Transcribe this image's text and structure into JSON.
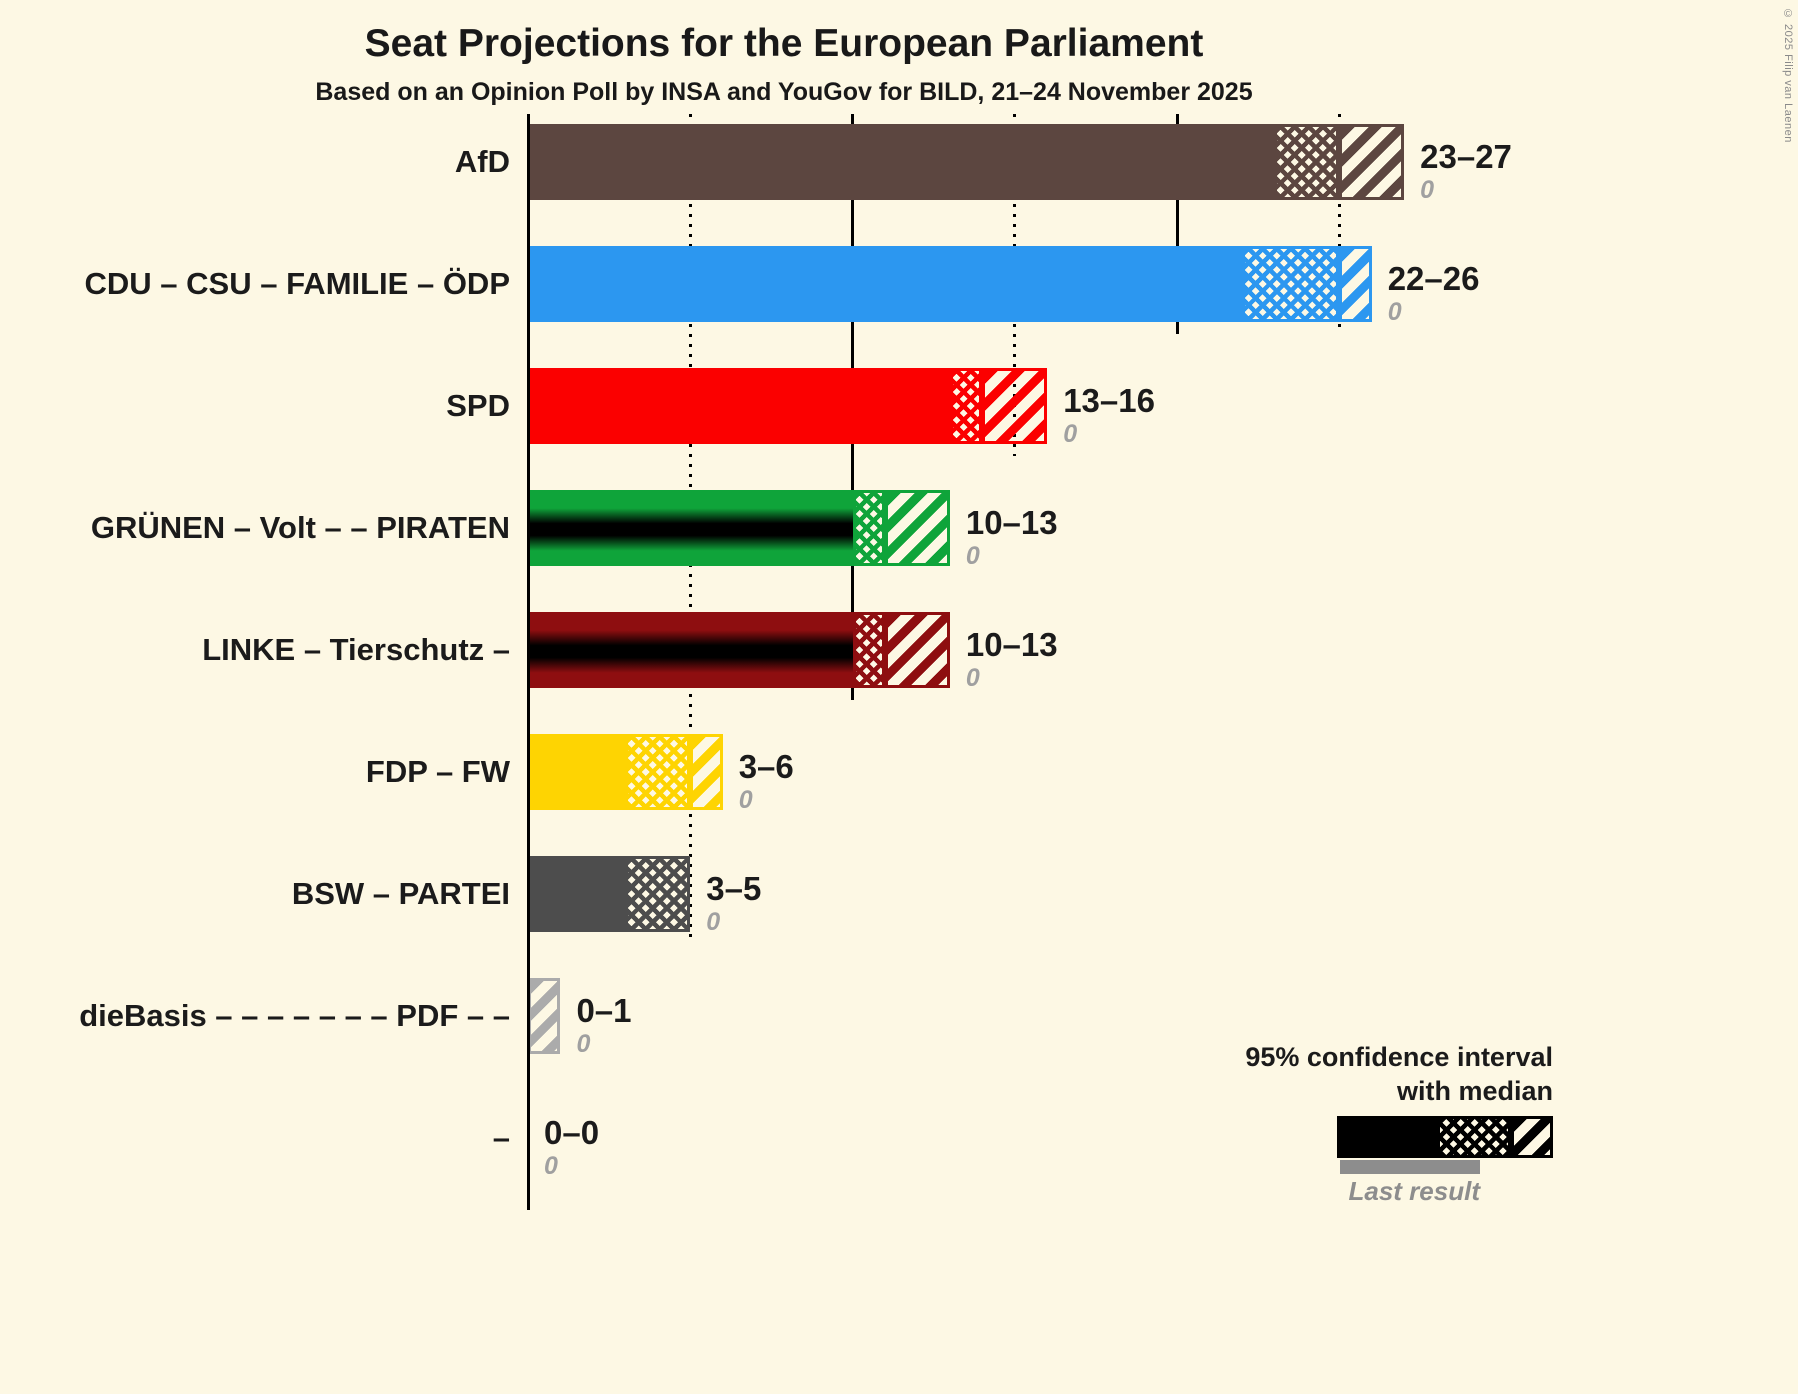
{
  "title": "Seat Projections for the European Parliament",
  "subtitle": "Based on an Opinion Poll by INSA and YouGov for BILD, 21–24 November 2025",
  "copyright": "© 2025 Filip van Laenen",
  "legend": {
    "line1": "95% confidence interval",
    "line2": "with median",
    "last_result": "Last result"
  },
  "colors": {
    "background": "#fdf8e4",
    "text": "#1b1b1b",
    "muted_gray": "#a0a0a0",
    "last_result_gray": "#8d8d8d",
    "legend_bar_black": "#000000"
  },
  "chart_data": {
    "type": "bar",
    "orientation": "horizontal",
    "title": "Seat Projections for the European Parliament",
    "subtitle": "Based on an Opinion Poll by INSA and YouGov for BILD, 21–24 November 2025",
    "x_axis": {
      "unit": "seats",
      "min": 0,
      "max": 27,
      "dotted_gridlines": [
        5,
        15,
        25
      ],
      "solid_gridlines": [
        10,
        20
      ]
    },
    "bar_semantics": "solid fill = up to 95% CI lower bound; crosshatch = lower bound to median; diagonal hatch = median to upper bound; gray italic number = last result",
    "parties": [
      {
        "label": "AfD",
        "low": 23,
        "median": 25,
        "high": 27,
        "last_result": 0,
        "range_label": "23–27",
        "last_result_label": "0",
        "color": "#5c4640",
        "black_band": false
      },
      {
        "label": "CDU – CSU – FAMILIE – ÖDP",
        "low": 22,
        "median": 25,
        "high": 26,
        "last_result": 0,
        "range_label": "22–26",
        "last_result_label": "0",
        "color": "#2c97f0",
        "black_band": false
      },
      {
        "label": "SPD",
        "low": 13,
        "median": 14,
        "high": 16,
        "last_result": 0,
        "range_label": "13–16",
        "last_result_label": "0",
        "color": "#fb0000",
        "black_band": false
      },
      {
        "label": "GRÜNEN – Volt – – PIRATEN",
        "low": 10,
        "median": 11,
        "high": 13,
        "last_result": 0,
        "range_label": "10–13",
        "last_result_label": "0",
        "color": "#0fa43a",
        "black_band": true
      },
      {
        "label": "LINKE – Tierschutz –",
        "low": 10,
        "median": 11,
        "high": 13,
        "last_result": 0,
        "range_label": "10–13",
        "last_result_label": "0",
        "color": "#8e0e10",
        "black_band": true
      },
      {
        "label": "FDP – FW",
        "low": 3,
        "median": 5,
        "high": 6,
        "last_result": 0,
        "range_label": "3–6",
        "last_result_label": "0",
        "color": "#fed402",
        "black_band": false
      },
      {
        "label": "BSW – PARTEI",
        "low": 3,
        "median": 5,
        "high": 5,
        "last_result": 0,
        "range_label": "3–5",
        "last_result_label": "0",
        "color": "#4d4d4d",
        "black_band": false
      },
      {
        "label": "dieBasis – – – – – – – PDF – –",
        "low": 0,
        "median": 0,
        "high": 1,
        "last_result": 0,
        "range_label": "0–1",
        "last_result_label": "0",
        "color": "#ababab",
        "black_band": false
      },
      {
        "label": "–",
        "low": 0,
        "median": 0,
        "high": 0,
        "last_result": 0,
        "range_label": "0–0",
        "last_result_label": "0",
        "color": "#000000",
        "black_band": false
      }
    ]
  }
}
